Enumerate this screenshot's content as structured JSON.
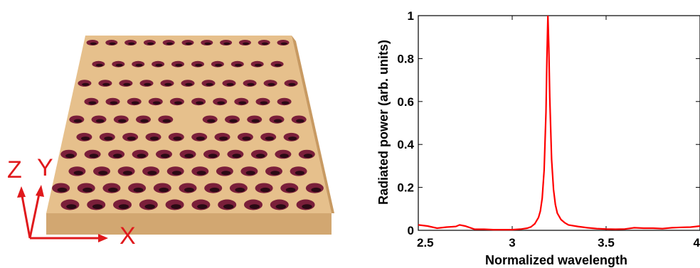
{
  "illustration": {
    "axis_letters": {
      "z": "Z",
      "y": "Y",
      "x": "X"
    },
    "slab_color": "#e6c08c",
    "hole_color": "#7a1f3a",
    "axis_color": "#e0191c",
    "hole_rows": 10,
    "hole_cols": 11,
    "missing_hole": {
      "row": 4,
      "col": 5
    }
  },
  "chart_data": {
    "type": "line",
    "xlabel": "Normalized wavelength",
    "ylabel": "Radiated power (arb. units)",
    "xlim": [
      2.5,
      4.0
    ],
    "ylim": [
      0,
      1
    ],
    "xticks": [
      2.5,
      3,
      3.5,
      4
    ],
    "xtick_labels": [
      "2.5",
      "3",
      "3.5",
      "4"
    ],
    "yticks": [
      0,
      0.2,
      0.4,
      0.6,
      0.8,
      1
    ],
    "ytick_labels": [
      "0",
      "0.2",
      "0.4",
      "0.6",
      "0.8",
      "1"
    ],
    "grid": false,
    "series": [
      {
        "color": "#ff0000",
        "x": [
          2.5,
          2.55,
          2.6,
          2.65,
          2.7,
          2.72,
          2.75,
          2.8,
          2.85,
          2.9,
          2.95,
          3.0,
          3.05,
          3.08,
          3.1,
          3.12,
          3.14,
          3.15,
          3.16,
          3.17,
          3.18,
          3.185,
          3.19,
          3.195,
          3.2,
          3.21,
          3.22,
          3.23,
          3.24,
          3.26,
          3.28,
          3.3,
          3.35,
          3.4,
          3.45,
          3.5,
          3.55,
          3.6,
          3.65,
          3.7,
          3.75,
          3.8,
          3.85,
          3.9,
          3.95,
          4.0
        ],
        "y": [
          0.025,
          0.02,
          0.01,
          0.015,
          0.018,
          0.025,
          0.02,
          0.005,
          0.005,
          0.003,
          0.003,
          0.003,
          0.006,
          0.01,
          0.016,
          0.03,
          0.06,
          0.09,
          0.15,
          0.28,
          0.55,
          0.8,
          1.0,
          0.85,
          0.62,
          0.33,
          0.19,
          0.12,
          0.08,
          0.05,
          0.035,
          0.025,
          0.018,
          0.012,
          0.008,
          0.006,
          0.005,
          0.006,
          0.012,
          0.01,
          0.01,
          0.008,
          0.012,
          0.014,
          0.015,
          0.02
        ]
      }
    ]
  }
}
